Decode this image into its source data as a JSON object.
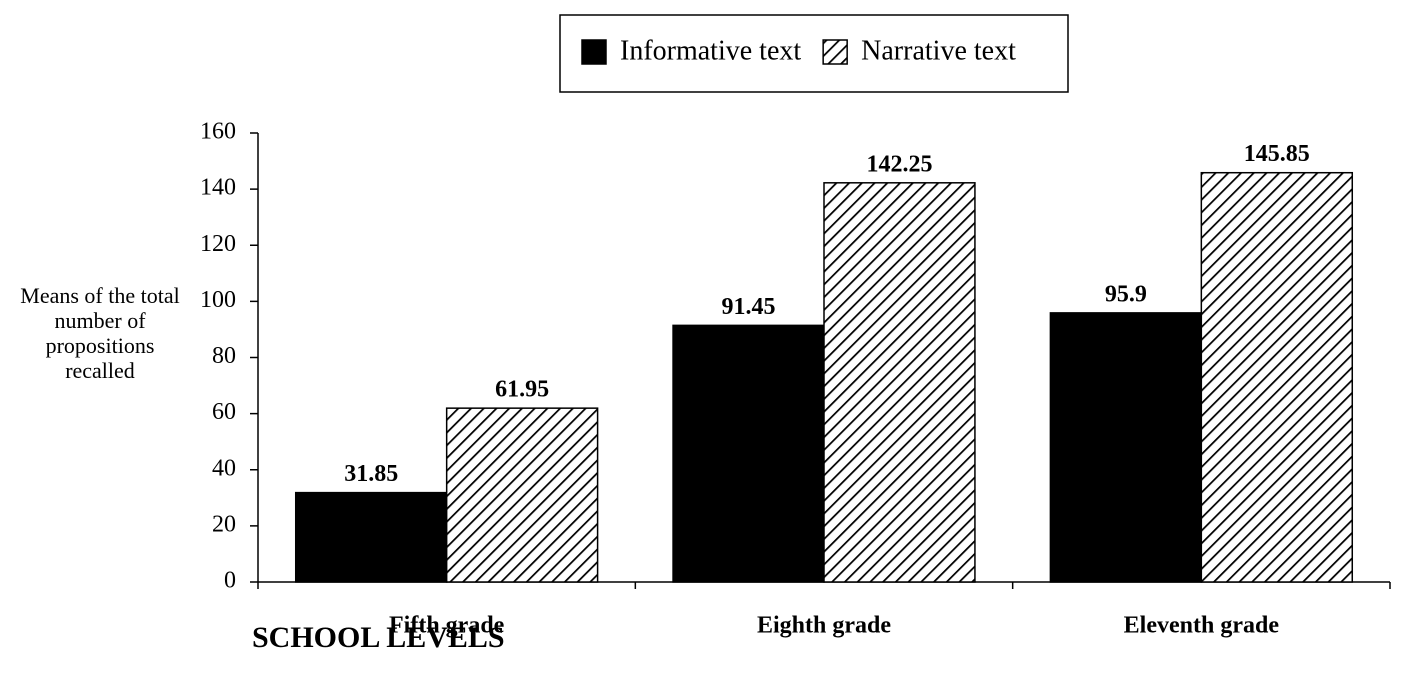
{
  "chart_data": {
    "type": "bar",
    "y_label": "Means of the total number of propositions recalled",
    "x_label": "SCHOOL LEVELS",
    "categories": [
      "Fifth grade",
      "Eighth grade",
      "Eleventh grade"
    ],
    "series": [
      {
        "name": "Informative text",
        "color": "#000000",
        "pattern": "solid",
        "values": [
          31.85,
          91.45,
          95.9
        ]
      },
      {
        "name": "Narrative text",
        "color": "#000000",
        "pattern": "hatch",
        "values": [
          61.95,
          142.25,
          145.85
        ]
      }
    ],
    "ylim": [
      0,
      160
    ],
    "yticks": [
      0,
      20,
      40,
      60,
      80,
      100,
      120,
      140,
      160
    ],
    "grid": false,
    "legend": "top"
  }
}
